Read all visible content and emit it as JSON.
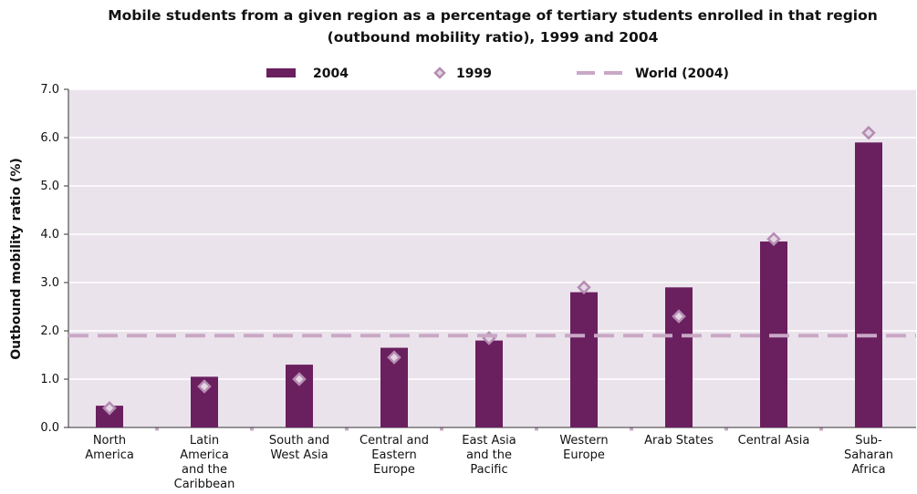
{
  "chart_data": {
    "type": "bar",
    "title": [
      "Mobile students from a given region as a percentage of tertiary students enrolled in that region",
      "(outbound mobility ratio), 1999 and 2004"
    ],
    "y_label": "Outbound mobility ratio (%)",
    "categories": [
      "North\nAmerica",
      "Latin\nAmerica\nand the\nCaribbean",
      "South and\nWest Asia",
      "Central and\nEastern\nEurope",
      "East Asia\nand the\nPacific",
      "Western\nEurope",
      "Arab States",
      "Central Asia",
      "Sub-\nSaharan\nAfrica"
    ],
    "series": [
      {
        "name": "2004",
        "type": "bar",
        "color": "#6a1f5f",
        "values": [
          0.45,
          1.05,
          1.3,
          1.65,
          1.8,
          2.8,
          2.9,
          3.85,
          5.9
        ]
      },
      {
        "name": "1999",
        "type": "diamond",
        "color": "#b58cb2",
        "values": [
          0.4,
          0.85,
          1.0,
          1.45,
          1.85,
          2.9,
          2.3,
          3.9,
          6.1
        ]
      }
    ],
    "reference_lines": [
      {
        "name": "World (2004)",
        "value": 1.9,
        "color": "#c9a8c6"
      }
    ],
    "ylim": [
      0,
      7
    ],
    "yticks": [
      {
        "value": 0,
        "label": "0.0"
      },
      {
        "value": 1,
        "label": "1.0"
      },
      {
        "value": 2,
        "label": "2.0"
      },
      {
        "value": 3,
        "label": "3.0"
      },
      {
        "value": 4,
        "label": "4.0"
      },
      {
        "value": 5,
        "label": "5.0"
      },
      {
        "value": 6,
        "label": "6.0"
      },
      {
        "value": 7,
        "label": "7.0"
      }
    ],
    "grid": true
  }
}
